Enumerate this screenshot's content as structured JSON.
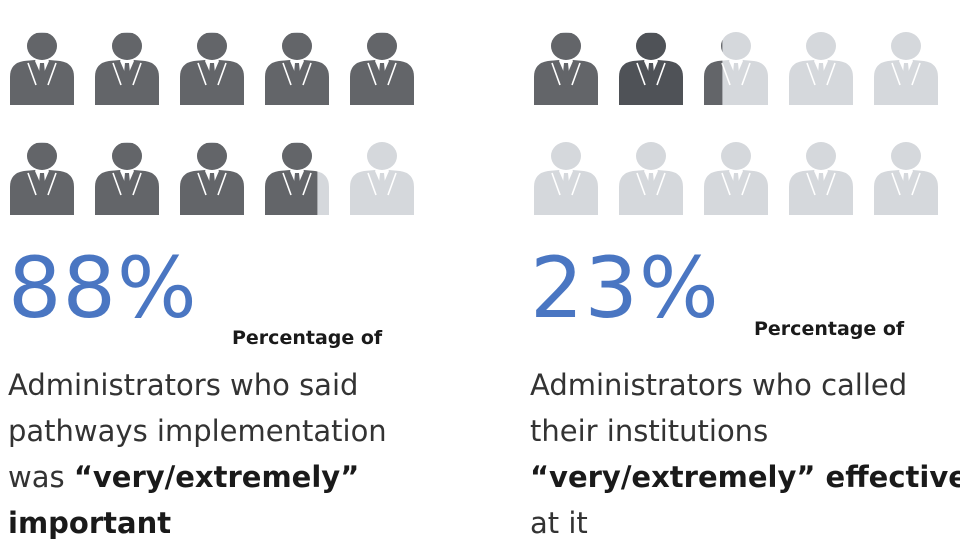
{
  "colors": {
    "filled": "#636569",
    "filled_dark": "#4f5257",
    "empty": "#d5d8dc",
    "accent": "#4a76c2"
  },
  "chart_data": [
    {
      "type": "pictogram",
      "icon": "businessman-icon",
      "total_icons": 10,
      "value_percent": 88,
      "value_label": "88%",
      "caption": "Percentage of",
      "description": {
        "pre": "Administrators who said pathways implementation was ",
        "emph": "“very/extremely” important",
        "post": ""
      }
    },
    {
      "type": "pictogram",
      "icon": "businessman-icon",
      "total_icons": 10,
      "value_percent": 23,
      "value_label": "23%",
      "caption": "Percentage of",
      "description": {
        "pre": "Administrators who called their institutions ",
        "emph": "“very/extremely” effective",
        "post": " at it"
      }
    }
  ]
}
